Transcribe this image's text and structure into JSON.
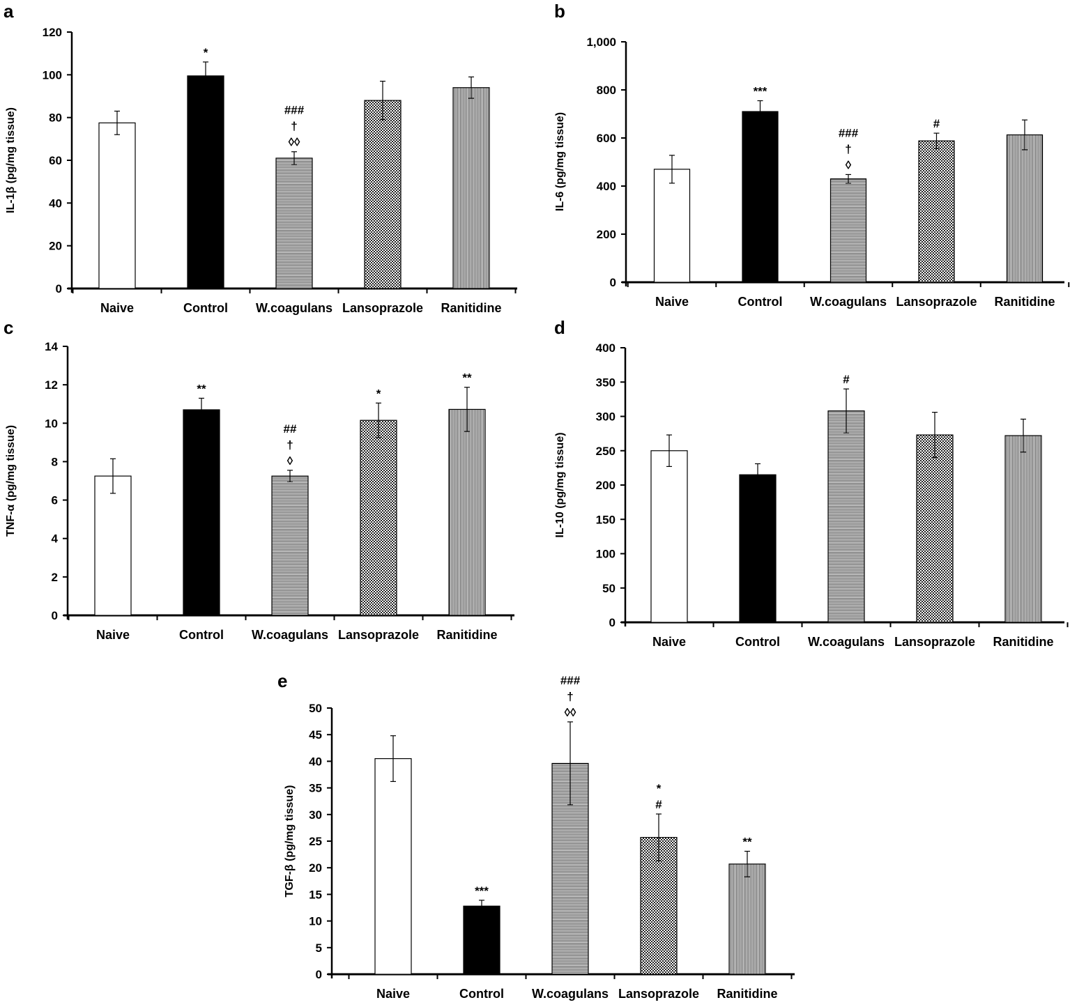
{
  "chart_data": [
    {
      "panel": "a",
      "type": "bar",
      "ylabel": "IL-1β (pg/mg tissue)",
      "ylim": [
        0,
        120
      ],
      "yticks": [
        "0",
        "20",
        "40",
        "60",
        "80",
        "100",
        "120"
      ],
      "categories": [
        "Naive",
        "Control",
        "W.coagulans",
        "Lansoprazole",
        "Ranitidine"
      ],
      "values": [
        77.5,
        99.5,
        61,
        88,
        94
      ],
      "errors": [
        5.5,
        6.5,
        3,
        9,
        5
      ],
      "annotations": [
        [],
        [
          "*"
        ],
        [
          "###",
          "†",
          "◊◊"
        ],
        [],
        []
      ],
      "fills": [
        "white",
        "black",
        "hstripe",
        "checker",
        "vstripe"
      ]
    },
    {
      "panel": "b",
      "type": "bar",
      "ylabel": "IL-6 (pg/mg tissue)",
      "ylim": [
        0,
        1000
      ],
      "yticks": [
        "0",
        "200",
        "400",
        "600",
        "800",
        "1,000"
      ],
      "categories": [
        "Naive",
        "Control",
        "W.coagulans",
        "Lansoprazole",
        "Ranitidine"
      ],
      "values": [
        470,
        710,
        430,
        588,
        613
      ],
      "errors": [
        58,
        45,
        18,
        32,
        62
      ],
      "annotations": [
        [],
        [
          "***"
        ],
        [
          "###",
          "†",
          "◊"
        ],
        [
          "#"
        ],
        []
      ],
      "fills": [
        "white",
        "black",
        "hstripe",
        "checker",
        "vstripe"
      ]
    },
    {
      "panel": "c",
      "type": "bar",
      "ylabel": "TNF-α  (pg/mg tissue)",
      "ylim": [
        0,
        14
      ],
      "yticks": [
        "0",
        "2",
        "4",
        "6",
        "8",
        "10",
        "12",
        "14"
      ],
      "categories": [
        "Naive",
        "Control",
        "W.coagulans",
        "Lansoprazole",
        "Ranitidine"
      ],
      "values": [
        7.25,
        10.7,
        7.25,
        10.15,
        10.72
      ],
      "errors": [
        0.9,
        0.6,
        0.3,
        0.9,
        1.15
      ],
      "annotations": [
        [],
        [
          "**"
        ],
        [
          "##",
          "†",
          "◊"
        ],
        [
          "*"
        ],
        [
          "**"
        ]
      ],
      "fills": [
        "white",
        "black",
        "hstripe",
        "checker",
        "vstripe"
      ]
    },
    {
      "panel": "d",
      "type": "bar",
      "ylabel": "IL-10 (pg/mg tissue)",
      "ylim": [
        0,
        400
      ],
      "yticks": [
        "0",
        "50",
        "100",
        "150",
        "200",
        "250",
        "300",
        "350",
        "400"
      ],
      "categories": [
        "Naive",
        "Control",
        "W.coagulans",
        "Lansoprazole",
        "Ranitidine"
      ],
      "values": [
        250,
        215,
        308,
        273,
        272
      ],
      "errors": [
        23,
        16,
        32,
        33,
        24
      ],
      "annotations": [
        [],
        [],
        [
          "#"
        ],
        [],
        []
      ],
      "fills": [
        "white",
        "black",
        "hstripe",
        "checker",
        "vstripe"
      ]
    },
    {
      "panel": "e",
      "type": "bar",
      "ylabel": "TGF-β (pg/mg tissue)",
      "ylim": [
        0,
        50
      ],
      "yticks": [
        "0",
        "5",
        "10",
        "15",
        "20",
        "25",
        "30",
        "35",
        "40",
        "45",
        "50"
      ],
      "categories": [
        "Naive",
        "Control",
        "W.coagulans",
        "Lansoprazole",
        "Ranitidine"
      ],
      "values": [
        40.5,
        12.8,
        39.6,
        25.7,
        20.7
      ],
      "errors": [
        4.3,
        1.1,
        7.8,
        4.4,
        2.4
      ],
      "annotations": [
        [],
        [
          "***"
        ],
        [
          "###",
          "†",
          "◊◊"
        ],
        [
          "*",
          "#"
        ],
        [
          "**"
        ]
      ],
      "fills": [
        "white",
        "black",
        "hstripe",
        "checker",
        "vstripe"
      ]
    }
  ]
}
